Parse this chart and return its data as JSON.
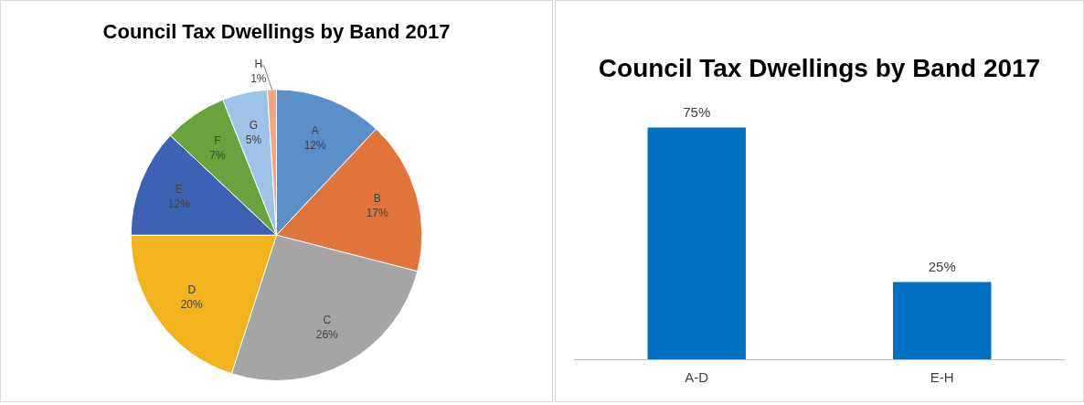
{
  "chart_data": [
    {
      "type": "pie",
      "title": "Council Tax Dwellings by Band 2017",
      "categories": [
        "A",
        "B",
        "C",
        "D",
        "E",
        "F",
        "G",
        "H"
      ],
      "values": [
        12,
        17,
        26,
        20,
        12,
        7,
        5,
        1
      ],
      "colors": [
        "#5b8fc9",
        "#e0743a",
        "#a5a5a5",
        "#f2b31c",
        "#3d62b3",
        "#6aa33d",
        "#9dc3e6",
        "#f4a582"
      ],
      "value_labels": [
        "12%",
        "17%",
        "26%",
        "20%",
        "12%",
        "7%",
        "5%",
        "1%"
      ],
      "legend": false
    },
    {
      "type": "bar",
      "title": "Council Tax Dwellings by Band 2017",
      "categories": [
        "A-D",
        "E-H"
      ],
      "color": "#0070c0",
      "values": [
        75,
        25
      ],
      "value_labels": [
        "75%",
        "25%"
      ],
      "tick_labels": "x",
      "legend": false
    }
  ]
}
